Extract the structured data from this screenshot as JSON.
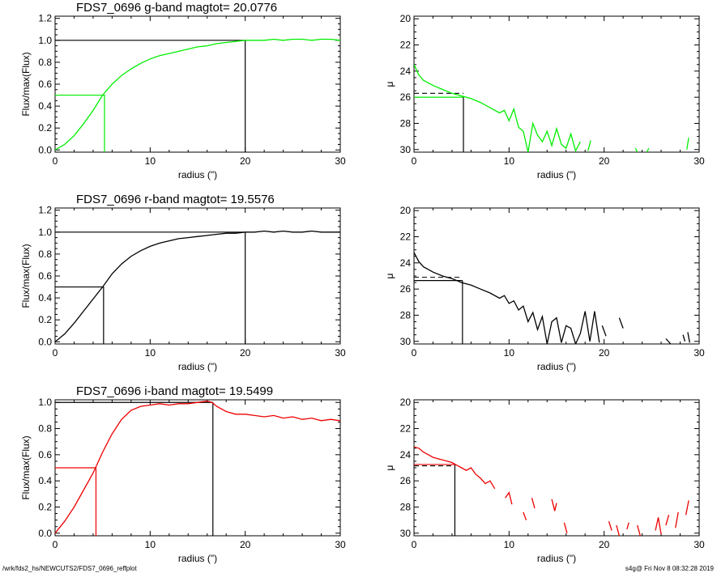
{
  "footer": {
    "path": "/wrk/fds2_hs/NEWCUTS2/FDS7_0696_reffplot",
    "stamp": "s4g@  Fri Nov  8 08:32:28 2019"
  },
  "chart_data": [
    {
      "type": "line",
      "title": "FDS7_0696 g-band  magtot=      20.0776",
      "xlabel": "radius (\")",
      "ylabel": "Flux/max(Flux)",
      "xlim": [
        0,
        30
      ],
      "ylim": [
        -0.02,
        1.22
      ],
      "xticks": [
        0,
        10,
        20,
        30
      ],
      "yticks": [
        0.0,
        0.2,
        0.4,
        0.6,
        0.8,
        1.0,
        1.2
      ],
      "color": "#00ee00",
      "series": [
        {
          "x": [
            0,
            1,
            2,
            3,
            4,
            5,
            6,
            7,
            8,
            9,
            10,
            11,
            12,
            13,
            14,
            15,
            16,
            17,
            18,
            19,
            20,
            21,
            22,
            23,
            24,
            25,
            26,
            27,
            28,
            29,
            30
          ],
          "values": [
            0.0,
            0.05,
            0.13,
            0.24,
            0.36,
            0.5,
            0.6,
            0.68,
            0.74,
            0.79,
            0.83,
            0.86,
            0.88,
            0.9,
            0.92,
            0.94,
            0.95,
            0.97,
            0.98,
            0.99,
            1.0,
            1.0,
            1.0,
            1.01,
            1.0,
            1.01,
            1.01,
            1.0,
            1.01,
            1.01,
            1.0
          ]
        }
      ],
      "guides": {
        "half_radius": 5.2,
        "half_value": 0.5,
        "total_radius": 20.0,
        "total_value": 1.0
      }
    },
    {
      "type": "line",
      "xlabel": "radius (\")",
      "ylabel": "μ",
      "xlim": [
        0,
        30
      ],
      "ylim": [
        30.2,
        19.8
      ],
      "xticks": [
        0,
        10,
        20,
        30
      ],
      "yticks": [
        20,
        22,
        24,
        26,
        28,
        30
      ],
      "color": "#00ee00",
      "series": [
        {
          "x": [
            0,
            0.5,
            1,
            1.5,
            2,
            3,
            4,
            5,
            6,
            7,
            8,
            9,
            9.5,
            10,
            10.5,
            11,
            11.5,
            12,
            12.5,
            13,
            13.5,
            14,
            14.5,
            15,
            15.5,
            16,
            16.5,
            17,
            17.5,
            null,
            18.3,
            18.6,
            null,
            23.3,
            23.5,
            null,
            24.5,
            24.7,
            null,
            28.7,
            28.9
          ],
          "values": [
            23.5,
            24.3,
            24.7,
            24.9,
            25.1,
            25.4,
            25.7,
            25.9,
            26.1,
            26.4,
            26.8,
            27.2,
            27.0,
            27.8,
            26.9,
            28.3,
            28.6,
            30.2,
            28.0,
            28.9,
            29.4,
            28.6,
            29.7,
            28.4,
            29.6,
            29.9,
            28.8,
            30.1,
            29.4,
            null,
            30.1,
            29.3,
            null,
            29.9,
            30.2,
            null,
            30.2,
            29.9,
            null,
            30.0,
            29.1
          ]
        }
      ],
      "guides": {
        "mean_level": 25.7,
        "level": 26.0,
        "radius": 5.2
      }
    },
    {
      "type": "line",
      "title": "FDS7_0696 r-band  magtot=      19.5576",
      "xlabel": "radius (\")",
      "ylabel": "Flux/max(Flux)",
      "xlim": [
        0,
        30
      ],
      "ylim": [
        -0.02,
        1.22
      ],
      "xticks": [
        0,
        10,
        20,
        30
      ],
      "yticks": [
        0.0,
        0.2,
        0.4,
        0.6,
        0.8,
        1.0,
        1.2
      ],
      "color": "#000000",
      "series": [
        {
          "x": [
            0,
            1,
            2,
            3,
            4,
            5,
            6,
            7,
            8,
            9,
            10,
            11,
            12,
            13,
            14,
            15,
            16,
            17,
            18,
            19,
            20,
            21,
            22,
            23,
            24,
            25,
            26,
            27,
            28,
            29,
            30
          ],
          "values": [
            0.0,
            0.07,
            0.17,
            0.28,
            0.39,
            0.5,
            0.62,
            0.71,
            0.78,
            0.83,
            0.87,
            0.9,
            0.92,
            0.94,
            0.95,
            0.96,
            0.97,
            0.98,
            0.99,
            0.99,
            1.0,
            1.0,
            1.01,
            1.0,
            1.01,
            1.0,
            1.0,
            1.01,
            1.0,
            1.0,
            1.0
          ]
        }
      ],
      "guides": {
        "half_radius": 5.1,
        "half_value": 0.5,
        "total_radius": 20.0,
        "total_value": 1.0
      }
    },
    {
      "type": "line",
      "xlabel": "radius (\")",
      "ylabel": "μ",
      "xlim": [
        0,
        30
      ],
      "ylim": [
        30.2,
        19.8
      ],
      "xticks": [
        0,
        10,
        20,
        30
      ],
      "yticks": [
        20,
        22,
        24,
        26,
        28,
        30
      ],
      "color": "#000000",
      "series": [
        {
          "x": [
            0,
            0.5,
            1,
            1.5,
            2,
            3,
            4,
            5,
            6,
            7,
            8,
            9,
            9.5,
            10,
            10.5,
            11,
            11.5,
            12,
            12.5,
            13,
            13.5,
            14,
            14.5,
            15,
            15.5,
            16,
            16.5,
            17,
            17.5,
            18,
            18.5,
            19,
            19.5,
            null,
            19.8,
            20.2,
            null,
            21.6,
            22.0,
            null,
            26.5,
            27.0,
            null,
            28.3,
            28.5,
            null,
            28.8,
            29.0
          ],
          "values": [
            23.2,
            23.9,
            24.3,
            24.5,
            24.7,
            25.0,
            25.2,
            25.5,
            25.7,
            26.0,
            26.3,
            26.7,
            26.5,
            27.1,
            26.9,
            27.6,
            27.3,
            28.5,
            27.8,
            29.1,
            28.1,
            30.2,
            28.5,
            28.2,
            30.1,
            28.8,
            29.0,
            30.2,
            29.4,
            27.7,
            30.0,
            27.7,
            30.1,
            null,
            28.8,
            29.6,
            null,
            28.2,
            29.0,
            null,
            29.8,
            30.2,
            null,
            29.5,
            30.0,
            null,
            29.3,
            30.1
          ]
        }
      ],
      "guides": {
        "mean_level": 25.1,
        "level": 25.35,
        "radius": 5.1
      }
    },
    {
      "type": "line",
      "title": "FDS7_0696 i-band  magtot=      19.5499",
      "xlabel": "radius (\")",
      "ylabel": "Flux/max(Flux)",
      "xlim": [
        0,
        30
      ],
      "ylim": [
        -0.02,
        1.02
      ],
      "xticks": [
        0,
        10,
        20,
        30
      ],
      "yticks": [
        0.0,
        0.2,
        0.4,
        0.6,
        0.8,
        1.0
      ],
      "color": "#ee0000",
      "series": [
        {
          "x": [
            0,
            1,
            2,
            3,
            4,
            5,
            6,
            7,
            8,
            9,
            10,
            11,
            12,
            13,
            14,
            15,
            16,
            16.5,
            17,
            18,
            19,
            20,
            21,
            22,
            23,
            24,
            25,
            26,
            27,
            28,
            29,
            30
          ],
          "values": [
            0.0,
            0.09,
            0.2,
            0.33,
            0.46,
            0.62,
            0.76,
            0.87,
            0.94,
            0.97,
            0.98,
            0.99,
            0.98,
            0.99,
            0.99,
            1.0,
            1.01,
            1.0,
            0.97,
            0.93,
            0.91,
            0.91,
            0.9,
            0.89,
            0.9,
            0.88,
            0.89,
            0.87,
            0.88,
            0.86,
            0.87,
            0.86
          ]
        }
      ],
      "guides": {
        "half_radius": 4.3,
        "half_value": 0.5,
        "total_radius": 16.6,
        "total_value": 1.0
      }
    },
    {
      "type": "line",
      "xlabel": "radius (\")",
      "ylabel": "μ",
      "xlim": [
        0,
        30
      ],
      "ylim": [
        30.2,
        19.8
      ],
      "xticks": [
        0,
        10,
        20,
        30
      ],
      "yticks": [
        20,
        22,
        24,
        26,
        28,
        30
      ],
      "color": "#ee0000",
      "series": [
        {
          "x": [
            0,
            0.5,
            1,
            1.5,
            2,
            2.5,
            3,
            3.5,
            4,
            4.5,
            5,
            5.5,
            6,
            6.5,
            7,
            7.5,
            8,
            8.5,
            null,
            9.6,
            10,
            10.3,
            null,
            11.5,
            11.8,
            null,
            12.4,
            12.7,
            null,
            14.5,
            14.8,
            15.0,
            null,
            15.8,
            16.1,
            null,
            20.5,
            20.8,
            null,
            21.3,
            21.6,
            null,
            22.4,
            22.6,
            null,
            23.5,
            23.8,
            null,
            25.4,
            25.7,
            26.0,
            null,
            26.5,
            26.8,
            null,
            27.5,
            27.8,
            null,
            28.6,
            28.9
          ],
          "values": [
            23.4,
            23.5,
            23.8,
            24.0,
            24.2,
            24.3,
            24.4,
            24.5,
            24.6,
            24.8,
            25.0,
            25.2,
            25.0,
            25.5,
            25.8,
            26.2,
            26.0,
            26.6,
            null,
            27.3,
            26.9,
            27.8,
            null,
            28.4,
            29.0,
            null,
            27.3,
            28.1,
            null,
            27.4,
            28.3,
            27.7,
            null,
            29.2,
            30.0,
            null,
            29.1,
            29.8,
            null,
            29.4,
            30.2,
            null,
            29.7,
            29.2,
            null,
            29.4,
            30.2,
            null,
            29.8,
            28.8,
            30.1,
            null,
            29.4,
            28.6,
            null,
            29.6,
            28.4,
            null,
            28.6,
            27.5
          ]
        }
      ],
      "guides": {
        "mean_level": 24.85,
        "level": 24.75,
        "radius": 4.3
      }
    }
  ]
}
